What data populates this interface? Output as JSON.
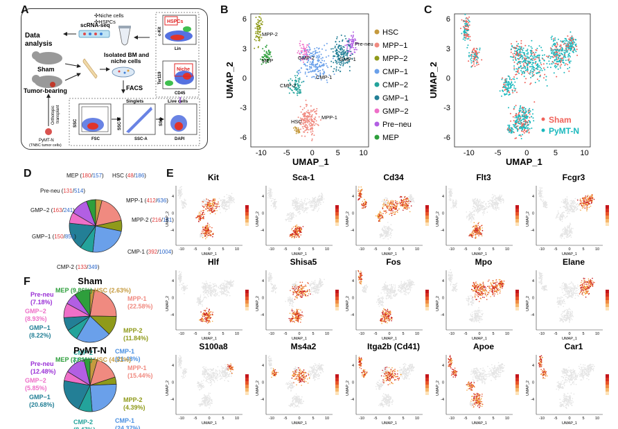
{
  "panels": {
    "a": "A",
    "b": "B",
    "c": "C",
    "d": "D",
    "e": "E",
    "f": "F"
  },
  "colors": {
    "HSC": "#c59a3e",
    "MPP1": "#f08a80",
    "MPP2": "#8f9a1a",
    "CMP1": "#6aa0ea",
    "CMP2": "#23a39b",
    "GMP1": "#237f96",
    "GMP2": "#ee6fc8",
    "PreNeu": "#b25fe3",
    "MEP": "#2e9f3c",
    "Sham": "#f0625a",
    "PyMT": "#19b8bd"
  },
  "panelA": {
    "scrna": "scRNA-seq",
    "niche": "✣Niche cells",
    "hspcs": "✣HSPCs",
    "data_analysis_1": "Data",
    "data_analysis_2": "analysis",
    "sham": "Sham",
    "isolated_1": "Isolated BM and",
    "isolated_2": "niche cells",
    "tumor": "Tumor-bearing",
    "facs": "FACS",
    "orthotopic": "Orthotopic",
    "transplant": "transplant",
    "pymt_1": "PyMT-N",
    "pymt_2": "(TNBC tumor cells)",
    "gate_hspcs": "HSPCs",
    "gate_niche": "Niche",
    "ckit": "c-Kit",
    "lin": "Lin",
    "ter119": "Ter119",
    "cd45": "CD45",
    "singlets": "Singlets",
    "live": "Live cells",
    "ssc1": "SSC",
    "fsc": "FSC",
    "sscH": "SSC-H",
    "sscA": "SSC-A",
    "ssc3": "SSC",
    "dapi": "DAPI"
  },
  "panelB": {
    "xlabel": "UMAP_1",
    "ylabel": "UMAP_2",
    "xticks": [
      "-10",
      "-5",
      "0",
      "5",
      "10"
    ],
    "yticks": [
      "6",
      "3",
      "0",
      "-3",
      "-6"
    ],
    "labels": {
      "MPP2": "MPP-2",
      "MEP": "MEP",
      "GMP2": "GMP-2",
      "PreNeu": "Pre-neu",
      "GMP1": "GMP-1",
      "CMP1": "CMP-1",
      "CMP2": "CMP-2",
      "HSC": "HSC",
      "MPP1": "MPP-1"
    },
    "legend": [
      "HSC",
      "MPP−1",
      "MPP−2",
      "CMP−1",
      "CMP−2",
      "GMP−1",
      "GMP−2",
      "Pre−neu",
      "MEP"
    ]
  },
  "panelC": {
    "xlabel": "UMAP_1",
    "ylabel": "UMAP_2",
    "xticks": [
      "-10",
      "-5",
      "0",
      "5",
      "10"
    ],
    "yticks": [
      "6",
      "3",
      "0",
      "-3",
      "-6"
    ],
    "legend": [
      "Sham",
      "PyMT-N"
    ]
  },
  "panelD": {
    "slices": [
      {
        "name": "MEP",
        "a": "180",
        "b": "157"
      },
      {
        "name": "HSC",
        "a": "48",
        "b": "186"
      },
      {
        "name": "MPP-1",
        "a": "412",
        "b": "636"
      },
      {
        "name": "MPP-2",
        "a": "216",
        "b": "181"
      },
      {
        "name": "CMP-1",
        "a": "392",
        "b": "1004"
      },
      {
        "name": "CMP-2",
        "a": "133",
        "b": "349"
      },
      {
        "name": "GMP−1",
        "a": "150",
        "b": "852"
      },
      {
        "name": "GMP−2",
        "a": "163",
        "b": "241"
      },
      {
        "name": "Pre-neu",
        "a": "131",
        "b": "514"
      }
    ]
  },
  "panelE": {
    "genes": [
      "Kit",
      "Sca-1",
      "Cd34",
      "Flt3",
      "Fcgr3",
      "Hlf",
      "Shisa5",
      "Fos",
      "Mpo",
      "Elane",
      "S100a8",
      "Ms4a2",
      "Itga2b (Cd41)",
      "Apoe",
      "Car1"
    ],
    "xlabel": "UMAP_1",
    "ylabel": "UMAP_2",
    "xticks": [
      "-10",
      "-5",
      "0",
      "5",
      "10"
    ],
    "yticks": [
      "4",
      "0",
      "-4"
    ]
  },
  "panelF": {
    "sham_title": "Sham",
    "pymt_title": "PyMT-N",
    "sham": [
      {
        "name": "MEP",
        "pct": "(9.86%)"
      },
      {
        "name": "HSC",
        "pct": "(2.63%)"
      },
      {
        "name": "MPP-1",
        "pct": "(22.58%)"
      },
      {
        "name": "MPP-2",
        "pct": "(11.84%)"
      },
      {
        "name": "CMP-1",
        "pct": "(21.48%)"
      },
      {
        "name": "CMP-2",
        "pct": "(7.29%)"
      },
      {
        "name": "GMP−1",
        "pct": "(8.22%)"
      },
      {
        "name": "GMP−2",
        "pct": "(8.93%)"
      },
      {
        "name": "Pre-neu",
        "pct": "(7.18%)"
      }
    ],
    "pymt": [
      {
        "name": "MEP",
        "pct": "(3.81%)"
      },
      {
        "name": "HSC",
        "pct": "(4.51%)"
      },
      {
        "name": "MPP-1",
        "pct": "(15.44%)"
      },
      {
        "name": "MPP-2",
        "pct": "(4.39%)"
      },
      {
        "name": "CMP-1",
        "pct": "(24.37%)"
      },
      {
        "name": "CMP-2",
        "pct": "(8.47%)"
      },
      {
        "name": "GMP−1",
        "pct": "(20.68%)"
      },
      {
        "name": "GMP−2",
        "pct": "(5.85%)"
      },
      {
        "name": "Pre-neu",
        "pct": "(12.48%)"
      }
    ]
  }
}
